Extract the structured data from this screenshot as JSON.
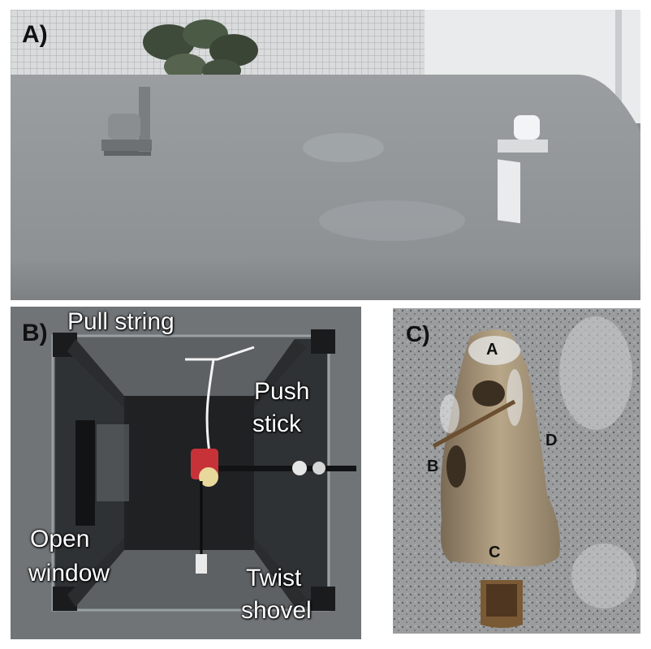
{
  "panels": {
    "a": {
      "label": "A)"
    },
    "b": {
      "label": "B)",
      "annotations": {
        "pull_string": "Pull string",
        "push_line1": "Push",
        "push_line2": "stick",
        "open_line1": "Open",
        "open_line2": "window",
        "twist_line1": "Twist",
        "twist_line2": "shovel"
      }
    },
    "c": {
      "label": "C)",
      "markers": {
        "a": "A",
        "b": "B",
        "c": "C",
        "d": "D"
      }
    }
  }
}
